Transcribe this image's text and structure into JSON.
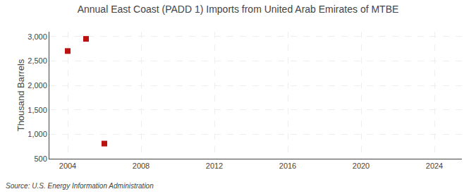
{
  "chart_data": {
    "type": "scatter",
    "title": "Annual East Coast (PADD 1) Imports from United Arab Emirates of MTBE",
    "ylabel": "Thousand Barrels",
    "source": "Source: U.S. Energy Information Administration",
    "x": [
      2004,
      2005,
      2006
    ],
    "values": [
      2705,
      2954,
      810
    ],
    "color": "#bb1111",
    "marker": "square",
    "xlim": [
      2003.0,
      2025.5
    ],
    "ylim": [
      500,
      3100
    ],
    "xticks": [
      2004,
      2008,
      2012,
      2016,
      2020,
      2024
    ],
    "yticks": [
      500,
      {
        "value": 1000,
        "label": "1,000"
      },
      {
        "value": 1500,
        "label": "1,500"
      },
      {
        "value": 2000,
        "label": "2,000"
      },
      {
        "value": 2500,
        "label": "2,500"
      },
      {
        "value": 3000,
        "label": "3,000"
      }
    ],
    "grid": true
  }
}
